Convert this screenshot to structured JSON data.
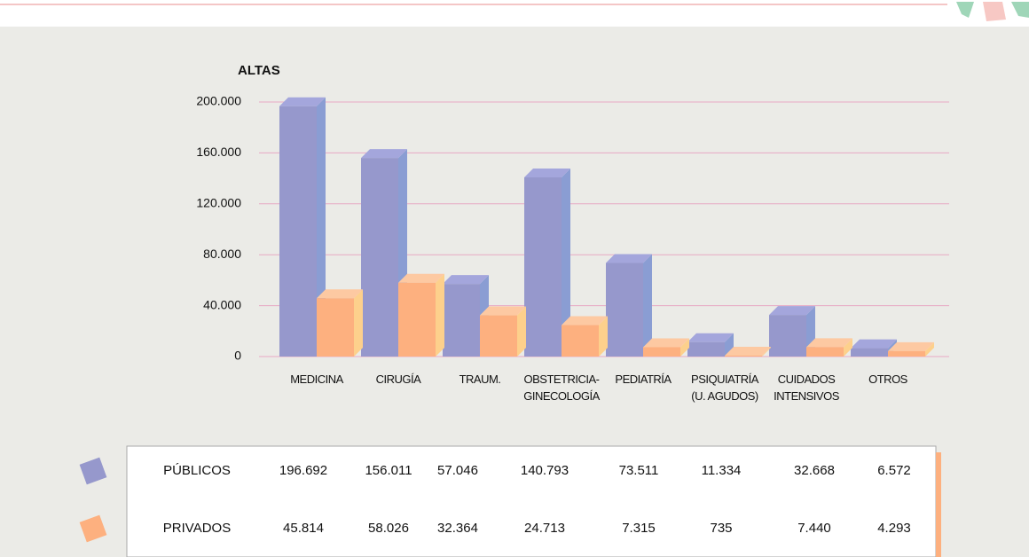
{
  "chart_data": {
    "type": "bar3d",
    "y_label": "ALTAS",
    "categories": [
      "MEDICINA",
      "CIRUGÍA",
      "TRAUM.",
      "OBSTETRICIA-\nGINECOLOGÍA",
      "PEDIATRÍA",
      "PSIQUIATRÍA\n(U. AGUDOS)",
      "CUIDADOS\nINTENSIVOS",
      "OTROS"
    ],
    "series": [
      {
        "name": "PÚBLICOS",
        "color": "#9698cc",
        "side": "#8a9dd3",
        "top": "#a4a6dc",
        "values": [
          196692,
          156011,
          57046,
          140793,
          73511,
          11334,
          32668,
          6572
        ],
        "value_labels": [
          "196.692",
          "156.011",
          "57.046",
          "140.793",
          "73.511",
          "11.334",
          "32.668",
          "6.572"
        ]
      },
      {
        "name": "PRIVADOS",
        "color": "#fdb07f",
        "side": "#fdd08c",
        "top": "#fdc9a2",
        "values": [
          45814,
          58026,
          32364,
          24713,
          7315,
          735,
          7440,
          4293
        ],
        "value_labels": [
          "45.814",
          "58.026",
          "32.364",
          "24.713",
          "7.315",
          "735",
          "7.440",
          "4.293"
        ]
      }
    ],
    "ylim": [
      0,
      200000
    ],
    "yticks": [
      0,
      {
        "value": 40000,
        "label": "40.000"
      },
      {
        "value": 80000,
        "label": "80.000"
      },
      {
        "value": 120000,
        "label": "120.000"
      },
      {
        "value": 160000,
        "label": "160.000"
      },
      {
        "value": 200000,
        "label": "200.000"
      }
    ],
    "grid": true
  }
}
